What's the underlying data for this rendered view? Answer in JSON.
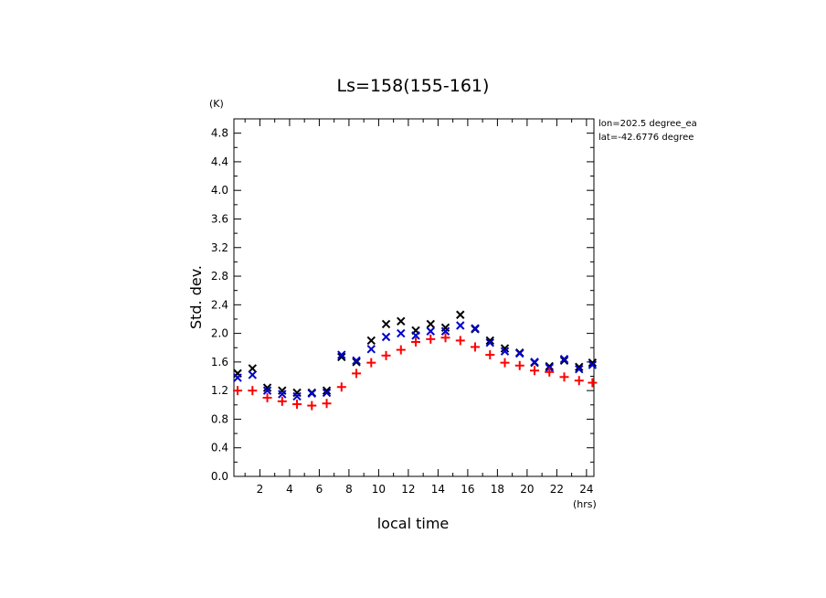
{
  "chart_data": {
    "type": "scatter",
    "title": "Ls=158(155-161)",
    "xlabel": "local time",
    "ylabel": "Std. dev.",
    "x_unit": "(hrs)",
    "y_unit": "(K)",
    "xlim": [
      0.25,
      24.5
    ],
    "ylim": [
      0.0,
      5.0
    ],
    "xticks": [
      2,
      4,
      6,
      8,
      10,
      12,
      14,
      16,
      18,
      20,
      22,
      24
    ],
    "yticks": [
      0.0,
      0.4,
      0.8,
      1.2,
      1.6,
      2.0,
      2.4,
      2.8,
      3.2,
      3.6,
      4.0,
      4.4,
      4.8
    ],
    "grid": false,
    "annotations": [
      "lon=202.5 degree_ea",
      "lat=-42.6776 degree"
    ],
    "series": [
      {
        "marker": "x",
        "color": "#000000",
        "x": [
          0.5,
          1.5,
          2.5,
          3.5,
          4.5,
          5.5,
          6.5,
          7.5,
          8.5,
          9.5,
          10.5,
          11.5,
          12.5,
          13.5,
          14.5,
          15.5,
          16.5,
          17.5,
          18.5,
          19.5,
          20.5,
          21.5,
          22.5,
          23.5,
          24.4
        ],
        "y": [
          1.44,
          1.51,
          1.24,
          1.2,
          1.17,
          1.17,
          1.2,
          1.67,
          1.6,
          1.9,
          2.13,
          2.17,
          2.04,
          2.13,
          2.08,
          2.26,
          2.06,
          1.9,
          1.79,
          1.73,
          1.59,
          1.54,
          1.62,
          1.53,
          1.59
        ]
      },
      {
        "marker": "x",
        "color": "#0000cc",
        "x": [
          0.5,
          1.5,
          2.5,
          3.5,
          4.5,
          5.5,
          6.5,
          7.5,
          8.5,
          9.5,
          10.5,
          11.5,
          12.5,
          13.5,
          14.5,
          15.5,
          16.5,
          17.5,
          18.5,
          19.5,
          20.5,
          21.5,
          22.5,
          23.5,
          24.4
        ],
        "y": [
          1.38,
          1.42,
          1.2,
          1.15,
          1.12,
          1.16,
          1.17,
          1.7,
          1.62,
          1.78,
          1.95,
          2.0,
          1.97,
          2.03,
          2.03,
          2.11,
          2.07,
          1.87,
          1.75,
          1.72,
          1.6,
          1.52,
          1.64,
          1.5,
          1.56
        ]
      },
      {
        "marker": "+",
        "color": "#ff0000",
        "x": [
          0.5,
          1.5,
          2.5,
          3.5,
          4.5,
          5.5,
          6.5,
          7.5,
          8.5,
          9.5,
          10.5,
          11.5,
          12.5,
          13.5,
          14.5,
          15.5,
          16.5,
          17.5,
          18.5,
          19.5,
          20.5,
          21.5,
          22.5,
          23.5,
          24.4
        ],
        "y": [
          1.2,
          1.2,
          1.1,
          1.05,
          1.01,
          0.99,
          1.02,
          1.25,
          1.44,
          1.59,
          1.69,
          1.77,
          1.88,
          1.92,
          1.94,
          1.9,
          1.81,
          1.7,
          1.59,
          1.55,
          1.48,
          1.46,
          1.39,
          1.34,
          1.31
        ]
      }
    ]
  }
}
